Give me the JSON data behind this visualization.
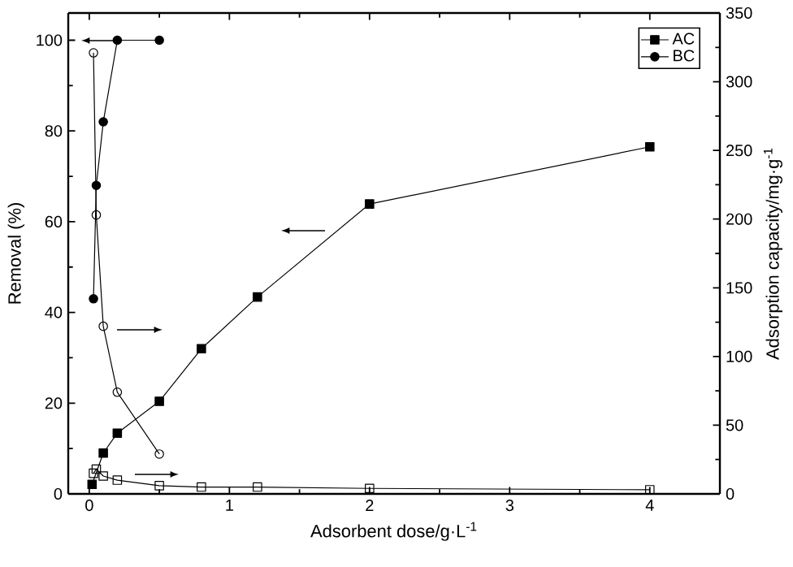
{
  "chart_data": {
    "type": "line",
    "xlabel": "Adsorbent dose/g·L$^{-1}$",
    "ylabel": "Removal (%)",
    "y2label": "Adsorption capacity/mg·g$^{-1}$",
    "xlim": [
      -0.15,
      4.5
    ],
    "xticks": [
      0,
      1,
      2,
      3,
      4
    ],
    "ylim": [
      0,
      106
    ],
    "yticks": [
      0,
      20,
      40,
      60,
      80,
      100
    ],
    "y2lim": [
      0,
      350
    ],
    "y2ticks": [
      0,
      50,
      100,
      150,
      200,
      250,
      300,
      350
    ],
    "legend": "top right",
    "grid": false,
    "series": [
      {
        "name": "AC",
        "color": "#000000",
        "marker": "square",
        "x": [
          0.02,
          0.1,
          0.2,
          0.5,
          0.8,
          1.2,
          2,
          4
        ],
        "values": [
          2.1,
          9,
          13.4,
          20.4,
          32,
          43.4,
          63.9,
          76.5
        ]
      },
      {
        "name": "BC",
        "color": "#000000",
        "marker": "circle",
        "x": [
          0.03,
          0.05,
          0.1,
          0.2,
          0.5
        ],
        "values": [
          43,
          68,
          82,
          100,
          100
        ]
      },
      {
        "color": "#000000",
        "marker": "square",
        "axis": "y2",
        "x": [
          0.03,
          0.05,
          0.1,
          0.2,
          0.5,
          0.8,
          1.2,
          2,
          4
        ],
        "values": [
          15,
          18,
          13,
          10,
          6,
          5,
          5,
          4,
          3
        ]
      },
      {
        "color": "#000000",
        "marker": "circle",
        "axis": "y2",
        "x": [
          0.03,
          0.05,
          0.1,
          0.2,
          0.5
        ],
        "values": [
          321,
          203,
          122,
          74,
          29
        ]
      }
    ]
  }
}
